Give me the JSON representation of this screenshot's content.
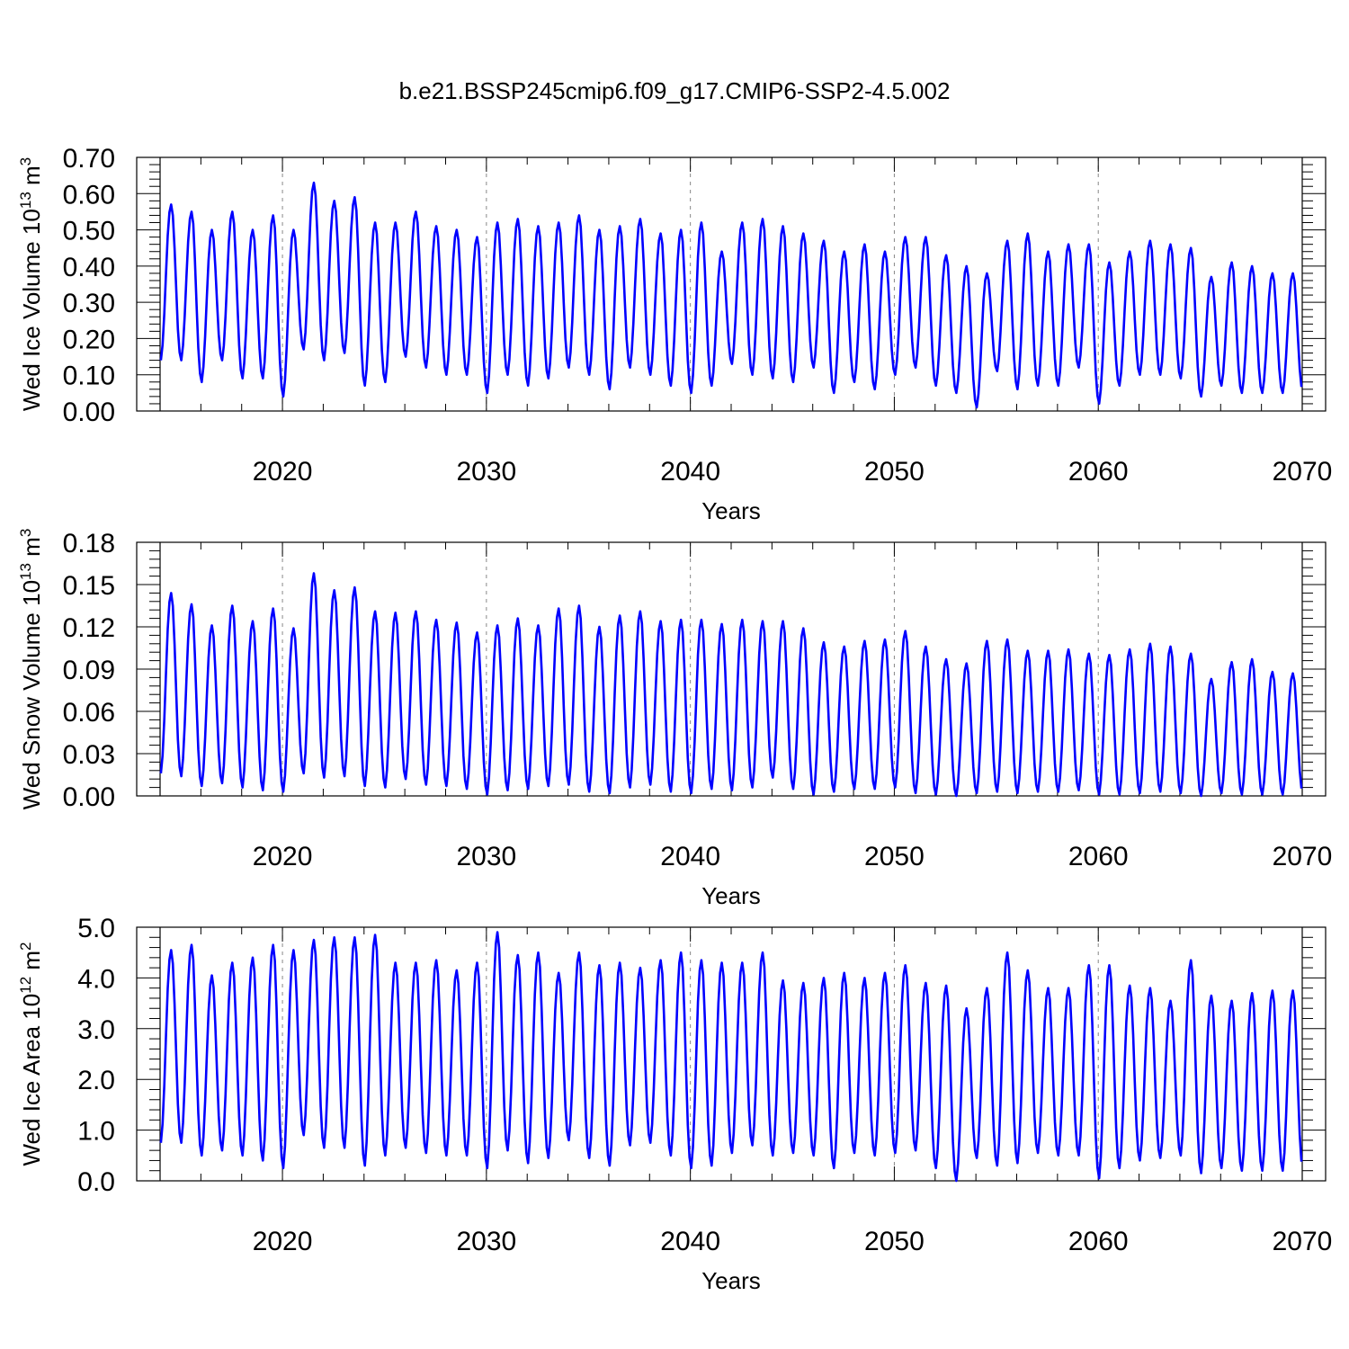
{
  "figure": {
    "title": "b.e21.BSSP245cmip6.f09_g17.CMIP6-SSP2-4.5.002"
  },
  "chart_data": [
    {
      "type": "line",
      "title": "",
      "xlabel": "Years",
      "ylabel": "Wed Ice Volume",
      "ylabel_units": {
        "base": "10",
        "exp": "13",
        "unit": "m",
        "unit_exp": "3"
      },
      "xlim": [
        2014,
        2070
      ],
      "ylim": [
        0.0,
        0.7
      ],
      "x_ticks": [
        2020,
        2030,
        2040,
        2050,
        2060,
        2070
      ],
      "x_tick_labels": [
        "2020",
        "2030",
        "2040",
        "2050",
        "2060",
        "2070"
      ],
      "y_ticks": [
        0.0,
        0.1,
        0.2,
        0.3,
        0.4,
        0.5,
        0.6,
        0.7
      ],
      "y_tick_labels": [
        "0.00",
        "0.10",
        "0.20",
        "0.30",
        "0.40",
        "0.50",
        "0.60",
        "0.70"
      ],
      "grid": "vertical dashed at decades",
      "color": "#0000ff",
      "series": [
        {
          "time_resolution": "monthly",
          "start": 2014.0,
          "seasonal_max": [
            0.57,
            0.55,
            0.5,
            0.55,
            0.5,
            0.54,
            0.5,
            0.63,
            0.58,
            0.59,
            0.52,
            0.52,
            0.55,
            0.51,
            0.5,
            0.48,
            0.52,
            0.53,
            0.51,
            0.52,
            0.54,
            0.5,
            0.51,
            0.53,
            0.49,
            0.5,
            0.52,
            0.44,
            0.52,
            0.53,
            0.51,
            0.49,
            0.47,
            0.44,
            0.46,
            0.44,
            0.48,
            0.48,
            0.43,
            0.4,
            0.38,
            0.47,
            0.49,
            0.44,
            0.46,
            0.46,
            0.41,
            0.44,
            0.47,
            0.46,
            0.45,
            0.37,
            0.41,
            0.4,
            0.38,
            0.38
          ],
          "seasonal_min": [
            0.14,
            0.14,
            0.08,
            0.14,
            0.09,
            0.09,
            0.04,
            0.17,
            0.14,
            0.16,
            0.07,
            0.08,
            0.15,
            0.12,
            0.1,
            0.1,
            0.05,
            0.1,
            0.07,
            0.09,
            0.12,
            0.1,
            0.06,
            0.12,
            0.1,
            0.07,
            0.05,
            0.07,
            0.13,
            0.1,
            0.09,
            0.08,
            0.12,
            0.05,
            0.08,
            0.06,
            0.1,
            0.12,
            0.07,
            0.05,
            0.01,
            0.11,
            0.06,
            0.07,
            0.07,
            0.12,
            0.02,
            0.07,
            0.1,
            0.1,
            0.09,
            0.04,
            0.07,
            0.05,
            0.05,
            0.05
          ]
        }
      ]
    },
    {
      "type": "line",
      "title": "",
      "xlabel": "Years",
      "ylabel": "Wed Snow Volume",
      "ylabel_units": {
        "base": "10",
        "exp": "13",
        "unit": "m",
        "unit_exp": "3"
      },
      "xlim": [
        2014,
        2070
      ],
      "ylim": [
        0.0,
        0.18
      ],
      "x_ticks": [
        2020,
        2030,
        2040,
        2050,
        2060,
        2070
      ],
      "x_tick_labels": [
        "2020",
        "2030",
        "2040",
        "2050",
        "2060",
        "2070"
      ],
      "y_ticks": [
        0.0,
        0.03,
        0.06,
        0.09,
        0.12,
        0.15,
        0.18
      ],
      "y_tick_labels": [
        "0.00",
        "0.03",
        "0.06",
        "0.09",
        "0.12",
        "0.15",
        "0.18"
      ],
      "grid": "vertical dashed at decades",
      "color": "#0000ff",
      "series": [
        {
          "time_resolution": "monthly",
          "start": 2014.0,
          "seasonal_max": [
            0.144,
            0.136,
            0.121,
            0.135,
            0.124,
            0.133,
            0.119,
            0.158,
            0.146,
            0.148,
            0.131,
            0.13,
            0.131,
            0.125,
            0.123,
            0.116,
            0.121,
            0.126,
            0.121,
            0.133,
            0.135,
            0.12,
            0.128,
            0.131,
            0.124,
            0.125,
            0.125,
            0.122,
            0.125,
            0.124,
            0.124,
            0.119,
            0.109,
            0.106,
            0.11,
            0.111,
            0.117,
            0.106,
            0.097,
            0.094,
            0.11,
            0.111,
            0.103,
            0.103,
            0.104,
            0.101,
            0.1,
            0.104,
            0.108,
            0.106,
            0.101,
            0.083,
            0.095,
            0.097,
            0.088,
            0.087
          ],
          "seasonal_min": [
            0.016,
            0.014,
            0.007,
            0.009,
            0.006,
            0.004,
            0.003,
            0.016,
            0.013,
            0.014,
            0.007,
            0.006,
            0.012,
            0.008,
            0.007,
            0.005,
            0.001,
            0.004,
            0.005,
            0.007,
            0.008,
            0.003,
            0.002,
            0.006,
            0.008,
            0.003,
            0.002,
            0.005,
            0.004,
            0.006,
            0.013,
            0.005,
            0.001,
            0.003,
            0.005,
            0.005,
            0.006,
            0.002,
            0.001,
            0.0,
            0.002,
            0.003,
            0.002,
            0.003,
            0.003,
            0.004,
            0.001,
            0.001,
            0.002,
            0.003,
            0.002,
            0.0,
            0.002,
            0.001,
            0.001,
            0.001
          ]
        }
      ]
    },
    {
      "type": "line",
      "title": "",
      "xlabel": "Years",
      "ylabel": "Wed Ice Area",
      "ylabel_units": {
        "base": "10",
        "exp": "12",
        "unit": "m",
        "unit_exp": "2"
      },
      "xlim": [
        2014,
        2070
      ],
      "ylim": [
        0.0,
        5.0
      ],
      "x_ticks": [
        2020,
        2030,
        2040,
        2050,
        2060,
        2070
      ],
      "x_tick_labels": [
        "2020",
        "2030",
        "2040",
        "2050",
        "2060",
        "2070"
      ],
      "y_ticks": [
        0.0,
        1.0,
        2.0,
        3.0,
        4.0,
        5.0
      ],
      "y_tick_labels": [
        "0.0",
        "1.0",
        "2.0",
        "3.0",
        "4.0",
        "5.0"
      ],
      "grid": "vertical dashed at decades",
      "color": "#0000ff",
      "series": [
        {
          "time_resolution": "monthly",
          "start": 2014.0,
          "seasonal_max": [
            4.55,
            4.65,
            4.05,
            4.3,
            4.4,
            4.65,
            4.55,
            4.75,
            4.8,
            4.8,
            4.85,
            4.3,
            4.3,
            4.35,
            4.15,
            4.3,
            4.9,
            4.45,
            4.5,
            4.1,
            4.5,
            4.25,
            4.3,
            4.2,
            4.35,
            4.5,
            4.35,
            4.3,
            4.3,
            4.5,
            3.95,
            3.9,
            4.0,
            4.1,
            4.0,
            4.1,
            4.25,
            3.9,
            3.85,
            3.4,
            3.8,
            4.5,
            4.15,
            3.8,
            3.8,
            4.25,
            4.25,
            3.85,
            3.8,
            3.55,
            4.35,
            3.65,
            3.55,
            3.7,
            3.75,
            3.75
          ],
          "seasonal_min": [
            0.75,
            0.75,
            0.5,
            0.6,
            0.5,
            0.4,
            0.25,
            0.9,
            0.65,
            0.65,
            0.3,
            0.5,
            0.65,
            0.55,
            0.5,
            0.5,
            0.25,
            0.6,
            0.35,
            0.45,
            0.8,
            0.45,
            0.3,
            0.7,
            0.75,
            0.5,
            0.25,
            0.3,
            0.55,
            0.7,
            0.5,
            0.55,
            0.5,
            0.25,
            0.55,
            0.5,
            0.55,
            0.6,
            0.25,
            0.0,
            0.45,
            0.3,
            0.35,
            0.55,
            0.5,
            0.5,
            0.05,
            0.25,
            0.4,
            0.45,
            0.5,
            0.15,
            0.25,
            0.2,
            0.2,
            0.2
          ]
        }
      ]
    }
  ]
}
